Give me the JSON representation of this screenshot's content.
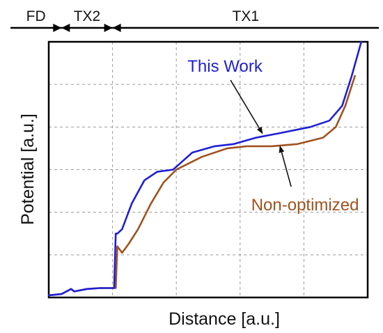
{
  "chart_data": {
    "type": "line",
    "xlabel": "Distance [a.u.]",
    "ylabel": "Potential [a.u.]",
    "xlim": [
      0,
      10
    ],
    "ylim": [
      0,
      6
    ],
    "grid": true,
    "grid_style": "dashed",
    "x_gridlines": [
      2,
      4,
      6,
      8
    ],
    "y_gridlines": [
      1,
      2,
      3,
      4,
      5
    ],
    "regions": [
      {
        "label": "FD",
        "start": -1.2,
        "end": 0.4
      },
      {
        "label": "TX2",
        "start": 0.4,
        "end": 2.0
      },
      {
        "label": "TX1",
        "start": 2.0,
        "end": 10.6
      }
    ],
    "series": [
      {
        "name": "This Work",
        "color": "#1f1fd6",
        "points": [
          [
            0,
            0.05
          ],
          [
            0.4,
            0.08
          ],
          [
            0.7,
            0.2
          ],
          [
            0.8,
            0.14
          ],
          [
            1.2,
            0.2
          ],
          [
            1.6,
            0.22
          ],
          [
            2.05,
            0.22
          ],
          [
            2.1,
            1.5
          ],
          [
            2.15,
            1.5
          ],
          [
            2.3,
            1.6
          ],
          [
            2.6,
            2.2
          ],
          [
            3.0,
            2.75
          ],
          [
            3.4,
            2.95
          ],
          [
            3.9,
            3.0
          ],
          [
            4.5,
            3.4
          ],
          [
            5.2,
            3.55
          ],
          [
            5.8,
            3.6
          ],
          [
            6.5,
            3.75
          ],
          [
            7.2,
            3.85
          ],
          [
            8.2,
            4.0
          ],
          [
            8.8,
            4.15
          ],
          [
            9.2,
            4.5
          ],
          [
            9.5,
            5.2
          ],
          [
            9.8,
            6.0
          ]
        ]
      },
      {
        "name": "Non-optimized",
        "color": "#a0521e",
        "points": [
          [
            0,
            0.05
          ],
          [
            0.4,
            0.08
          ],
          [
            0.7,
            0.2
          ],
          [
            0.8,
            0.14
          ],
          [
            1.2,
            0.2
          ],
          [
            1.6,
            0.22
          ],
          [
            2.1,
            0.22
          ],
          [
            2.15,
            1.2
          ],
          [
            2.3,
            1.05
          ],
          [
            2.5,
            1.25
          ],
          [
            2.8,
            1.6
          ],
          [
            3.2,
            2.2
          ],
          [
            3.6,
            2.7
          ],
          [
            4.0,
            3.0
          ],
          [
            4.8,
            3.3
          ],
          [
            5.6,
            3.5
          ],
          [
            6.2,
            3.55
          ],
          [
            7.0,
            3.55
          ],
          [
            7.8,
            3.6
          ],
          [
            8.6,
            3.75
          ],
          [
            9.0,
            4.0
          ],
          [
            9.3,
            4.5
          ],
          [
            9.6,
            5.2
          ]
        ]
      }
    ],
    "annotations": [
      {
        "text": "This Work",
        "color": "#1f1fd6",
        "arrow_to_series": "This Work",
        "arrow_to": [
          6.7,
          3.85
        ],
        "from": [
          5.7,
          5.1
        ]
      },
      {
        "text": "Non-optimized",
        "color": "#a0521e",
        "arrow_to_series": "Non-optimized",
        "arrow_to": [
          7.25,
          3.55
        ],
        "from": [
          7.6,
          2.6
        ]
      }
    ]
  }
}
